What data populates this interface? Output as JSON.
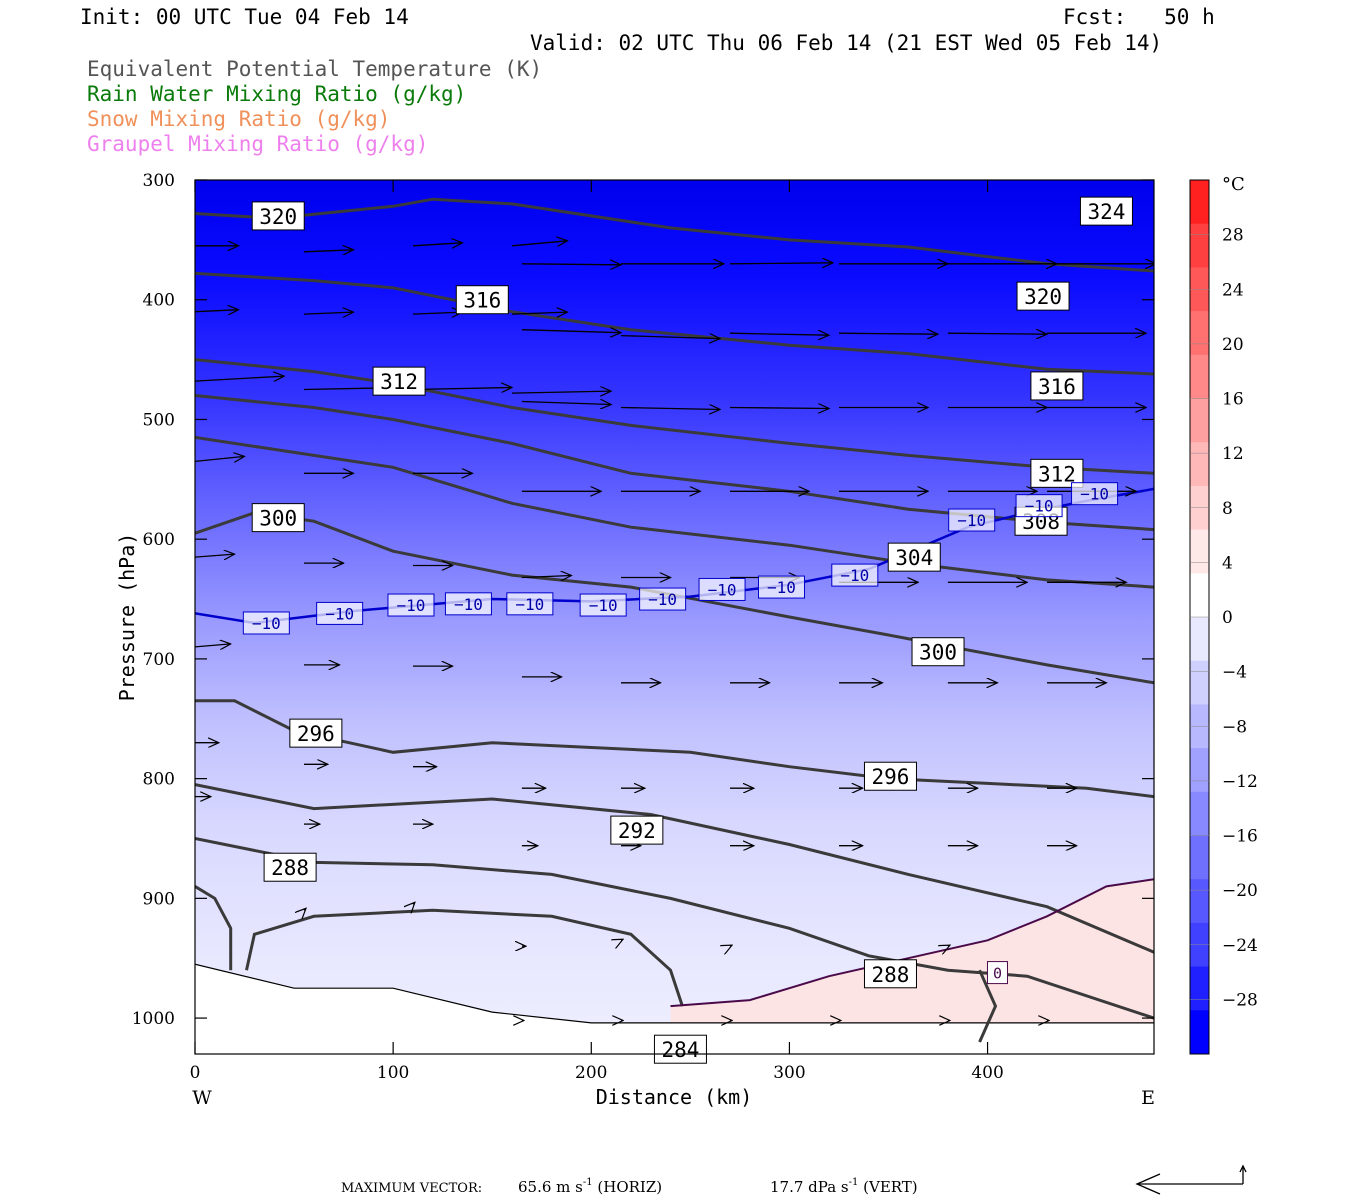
{
  "header": {
    "init": "Init: 00 UTC Tue 04 Feb 14",
    "fcst": "Fcst:   50 h",
    "valid": "Valid: 02 UTC Thu 06 Feb 14 (21 EST Wed 05 Feb 14)"
  },
  "legend": [
    {
      "label": "Equivalent Potential Temperature (K)",
      "color": "#555555"
    },
    {
      "label": "Rain Water Mixing Ratio (g/kg)",
      "color": "#0a7a0a"
    },
    {
      "label": "Snow Mixing Ratio (g/kg)",
      "color": "#f0905a"
    },
    {
      "label": "Graupel Mixing Ratio (g/kg)",
      "color": "#ee80ee"
    }
  ],
  "footer": {
    "label": "MAXIMUM VECTOR:",
    "horiz_value": "65.6 m s",
    "horiz_unit": "(HORIZ)",
    "vert_value": "17.7 dPa s",
    "vert_unit": "(VERT)",
    "exponent": "-1"
  },
  "chart_data": {
    "type": "cross-section",
    "xlabel": "Distance (km)",
    "ylabel": "Pressure (hPa)",
    "xlim": [
      0,
      484
    ],
    "ylim": [
      1030,
      300
    ],
    "x_ticks": [
      0,
      100,
      200,
      300,
      400
    ],
    "y_ticks": [
      300,
      400,
      500,
      600,
      700,
      800,
      900,
      1000
    ],
    "x_end_labels": {
      "left": "W",
      "right": "E"
    },
    "colorbar": {
      "unit": "°C",
      "tick_labels": [
        "28",
        "24",
        "20",
        "16",
        "12",
        "8",
        "4",
        "0",
        "−4",
        "−8",
        "−12",
        "−16",
        "−20",
        "−24",
        "−28"
      ],
      "tick_values": [
        28,
        24,
        20,
        16,
        12,
        8,
        4,
        0,
        -4,
        -8,
        -12,
        -16,
        -20,
        -24,
        -28
      ],
      "colors": [
        "#ff2020",
        "#ff4040",
        "#ff5858",
        "#ff7070",
        "#ff8888",
        "#ffa0a0",
        "#ffb8b8",
        "#ffd0d0",
        "#ffe8e8",
        "#ffffff",
        "#e8e8ff",
        "#d0d0ff",
        "#b8b8ff",
        "#a0a0ff",
        "#8888ff",
        "#7070ff",
        "#5858ff",
        "#4040ff",
        "#2020ff",
        "#0000ff"
      ]
    },
    "theta_e_contours": [
      {
        "level": 320,
        "points": [
          [
            0,
            328
          ],
          [
            40,
            332
          ],
          [
            100,
            322
          ],
          [
            120,
            316
          ],
          [
            160,
            320
          ],
          [
            240,
            340
          ],
          [
            300,
            350
          ],
          [
            360,
            356
          ],
          [
            430,
            370
          ],
          [
            484,
            376
          ]
        ]
      },
      {
        "level": 316,
        "points": [
          [
            0,
            378
          ],
          [
            60,
            384
          ],
          [
            100,
            390
          ],
          [
            160,
            410
          ],
          [
            220,
            425
          ],
          [
            300,
            438
          ],
          [
            360,
            445
          ],
          [
            430,
            458
          ],
          [
            484,
            462
          ]
        ]
      },
      {
        "level": 312,
        "points": [
          [
            0,
            450
          ],
          [
            60,
            460
          ],
          [
            100,
            470
          ],
          [
            160,
            490
          ],
          [
            220,
            505
          ],
          [
            300,
            520
          ],
          [
            360,
            530
          ],
          [
            430,
            540
          ],
          [
            484,
            545
          ]
        ]
      },
      {
        "level": 308,
        "points": [
          [
            0,
            480
          ],
          [
            60,
            490
          ],
          [
            100,
            500
          ],
          [
            160,
            520
          ],
          [
            220,
            545
          ],
          [
            300,
            560
          ],
          [
            360,
            575
          ],
          [
            430,
            586
          ],
          [
            484,
            592
          ]
        ]
      },
      {
        "level": 304,
        "points": [
          [
            0,
            515
          ],
          [
            40,
            525
          ],
          [
            100,
            540
          ],
          [
            160,
            570
          ],
          [
            220,
            590
          ],
          [
            300,
            605
          ],
          [
            360,
            620
          ],
          [
            430,
            634
          ],
          [
            484,
            640
          ]
        ]
      },
      {
        "level": 300,
        "points": [
          [
            0,
            595
          ],
          [
            30,
            578
          ],
          [
            60,
            585
          ],
          [
            100,
            610
          ],
          [
            160,
            630
          ],
          [
            220,
            640
          ],
          [
            300,
            665
          ],
          [
            350,
            680
          ],
          [
            430,
            705
          ],
          [
            484,
            720
          ]
        ]
      },
      {
        "level": 296,
        "points": [
          [
            0,
            735
          ],
          [
            20,
            735
          ],
          [
            50,
            760
          ],
          [
            100,
            778
          ],
          [
            150,
            770
          ],
          [
            250,
            778
          ],
          [
            300,
            790
          ],
          [
            350,
            800
          ],
          [
            400,
            804
          ],
          [
            450,
            808
          ],
          [
            484,
            815
          ]
        ]
      },
      {
        "level": 292,
        "points": [
          [
            0,
            805
          ],
          [
            60,
            825
          ],
          [
            150,
            817
          ],
          [
            230,
            830
          ],
          [
            300,
            855
          ],
          [
            360,
            880
          ],
          [
            430,
            907
          ],
          [
            484,
            945
          ]
        ]
      },
      {
        "level": 288,
        "points": [
          [
            0,
            850
          ],
          [
            60,
            870
          ],
          [
            120,
            872
          ],
          [
            180,
            880
          ],
          [
            240,
            900
          ],
          [
            300,
            925
          ],
          [
            340,
            948
          ],
          [
            380,
            960
          ],
          [
            420,
            965
          ],
          [
            484,
            1000
          ]
        ]
      },
      {
        "level": 284,
        "points": [
          [
            0,
            890
          ],
          [
            10,
            900
          ],
          [
            18,
            925
          ],
          [
            18,
            960
          ]
        ]
      },
      {
        "level": 284,
        "points": [
          [
            26,
            960
          ],
          [
            30,
            930
          ],
          [
            60,
            915
          ],
          [
            120,
            910
          ],
          [
            180,
            915
          ],
          [
            220,
            930
          ],
          [
            240,
            960
          ],
          [
            246,
            990
          ]
        ]
      },
      {
        "level": 284,
        "points": [
          [
            396,
            960
          ],
          [
            404,
            990
          ],
          [
            396,
            1020
          ]
        ]
      }
    ],
    "theta_e_labels": [
      {
        "text": "320",
        "x": 42,
        "p": 330
      },
      {
        "text": "324",
        "x": 460,
        "p": 326
      },
      {
        "text": "316",
        "x": 145,
        "p": 400
      },
      {
        "text": "320",
        "x": 428,
        "p": 397
      },
      {
        "text": "312",
        "x": 103,
        "p": 468
      },
      {
        "text": "316",
        "x": 435,
        "p": 472
      },
      {
        "text": "312",
        "x": 435,
        "p": 545
      },
      {
        "text": "308",
        "x": 427,
        "p": 585
      },
      {
        "text": "300",
        "x": 42,
        "p": 582
      },
      {
        "text": "304",
        "x": 363,
        "p": 615
      },
      {
        "text": "300",
        "x": 375,
        "p": 694
      },
      {
        "text": "296",
        "x": 61,
        "p": 762
      },
      {
        "text": "296",
        "x": 351,
        "p": 798
      },
      {
        "text": "292",
        "x": 223,
        "p": 843
      },
      {
        "text": "288",
        "x": 48,
        "p": 874
      },
      {
        "text": "288",
        "x": 351,
        "p": 963
      },
      {
        "text": "284",
        "x": 245,
        "p": 1026
      }
    ],
    "isotherm_minus10": {
      "level": -10,
      "points": [
        [
          0,
          662
        ],
        [
          30,
          670
        ],
        [
          80,
          660
        ],
        [
          150,
          650
        ],
        [
          200,
          652
        ],
        [
          250,
          648
        ],
        [
          300,
          638
        ],
        [
          340,
          625
        ],
        [
          370,
          604
        ],
        [
          390,
          590
        ],
        [
          420,
          578
        ],
        [
          450,
          568
        ],
        [
          484,
          558
        ]
      ],
      "labels": [
        [
          36,
          670
        ],
        [
          73,
          662
        ],
        [
          109,
          655
        ],
        [
          138,
          654
        ],
        [
          169,
          654
        ],
        [
          206,
          655
        ],
        [
          236,
          650
        ],
        [
          266,
          642
        ],
        [
          296,
          640
        ],
        [
          333,
          630
        ],
        [
          392,
          584
        ],
        [
          426,
          572
        ],
        [
          454,
          562
        ]
      ]
    },
    "isotherm_zero": {
      "level": 0,
      "points": [
        [
          240,
          990
        ],
        [
          280,
          985
        ],
        [
          320,
          965
        ],
        [
          360,
          950
        ],
        [
          400,
          935
        ],
        [
          430,
          915
        ],
        [
          460,
          890
        ],
        [
          484,
          884
        ]
      ],
      "label": [
        405,
        962
      ]
    },
    "ground": [
      [
        0,
        955
      ],
      [
        50,
        975
      ],
      [
        100,
        975
      ],
      [
        150,
        995
      ],
      [
        200,
        1004
      ],
      [
        250,
        1004
      ],
      [
        300,
        1004
      ],
      [
        400,
        1004
      ],
      [
        484,
        1004
      ]
    ],
    "wind_vectors": [
      [
        0,
        355,
        22,
        0
      ],
      [
        55,
        360,
        25,
        -2
      ],
      [
        110,
        355,
        25,
        -3
      ],
      [
        160,
        355,
        28,
        -5
      ],
      [
        165,
        370,
        50,
        1
      ],
      [
        215,
        370,
        52,
        0
      ],
      [
        270,
        370,
        52,
        -1
      ],
      [
        325,
        370,
        55,
        0
      ],
      [
        380,
        370,
        55,
        0
      ],
      [
        430,
        370,
        55,
        0
      ],
      [
        0,
        410,
        22,
        -2
      ],
      [
        55,
        412,
        25,
        -2
      ],
      [
        110,
        412,
        25,
        -2
      ],
      [
        160,
        412,
        28,
        -2
      ],
      [
        165,
        425,
        50,
        3
      ],
      [
        215,
        430,
        50,
        3
      ],
      [
        270,
        428,
        50,
        2
      ],
      [
        325,
        428,
        50,
        1
      ],
      [
        380,
        428,
        50,
        1
      ],
      [
        430,
        428,
        50,
        0
      ],
      [
        0,
        468,
        45,
        -5
      ],
      [
        55,
        475,
        50,
        -2
      ],
      [
        110,
        475,
        50,
        -2
      ],
      [
        160,
        478,
        50,
        -2
      ],
      [
        165,
        485,
        45,
        3
      ],
      [
        215,
        490,
        50,
        2
      ],
      [
        270,
        490,
        50,
        1
      ],
      [
        325,
        490,
        45,
        0
      ],
      [
        380,
        490,
        50,
        0
      ],
      [
        430,
        490,
        50,
        0
      ],
      [
        0,
        535,
        25,
        -5
      ],
      [
        55,
        545,
        25,
        0
      ],
      [
        110,
        545,
        30,
        0
      ],
      [
        165,
        560,
        40,
        0
      ],
      [
        215,
        560,
        40,
        0
      ],
      [
        270,
        560,
        40,
        0
      ],
      [
        325,
        560,
        45,
        0
      ],
      [
        380,
        560,
        45,
        0
      ],
      [
        430,
        560,
        45,
        0
      ],
      [
        0,
        615,
        20,
        -3
      ],
      [
        55,
        620,
        20,
        0
      ],
      [
        110,
        622,
        20,
        0
      ],
      [
        165,
        632,
        25,
        -2
      ],
      [
        215,
        632,
        25,
        0
      ],
      [
        270,
        632,
        35,
        0
      ],
      [
        325,
        636,
        40,
        0
      ],
      [
        380,
        636,
        40,
        0
      ],
      [
        430,
        636,
        40,
        0
      ],
      [
        0,
        690,
        18,
        -3
      ],
      [
        55,
        705,
        18,
        0
      ],
      [
        110,
        706,
        20,
        0
      ],
      [
        165,
        715,
        20,
        0
      ],
      [
        215,
        720,
        20,
        0
      ],
      [
        270,
        720,
        20,
        0
      ],
      [
        325,
        720,
        22,
        0
      ],
      [
        380,
        720,
        25,
        0
      ],
      [
        430,
        720,
        30,
        0
      ],
      [
        0,
        770,
        12,
        0
      ],
      [
        55,
        788,
        12,
        0
      ],
      [
        110,
        790,
        12,
        0
      ],
      [
        165,
        808,
        12,
        0
      ],
      [
        215,
        808,
        12,
        0
      ],
      [
        270,
        808,
        12,
        0
      ],
      [
        325,
        808,
        12,
        0
      ],
      [
        380,
        808,
        15,
        0
      ],
      [
        430,
        808,
        15,
        0
      ],
      [
        0,
        815,
        8,
        0
      ],
      [
        55,
        838,
        8,
        0
      ],
      [
        110,
        838,
        10,
        0
      ],
      [
        165,
        856,
        8,
        0
      ],
      [
        215,
        856,
        10,
        0
      ],
      [
        270,
        856,
        12,
        0
      ],
      [
        325,
        856,
        12,
        0
      ],
      [
        380,
        856,
        15,
        0
      ],
      [
        430,
        856,
        15,
        0
      ],
      [
        55,
        910,
        1,
        -2
      ],
      [
        110,
        905,
        1,
        -2
      ],
      [
        165,
        940,
        2,
        0
      ],
      [
        215,
        935,
        1,
        -1
      ],
      [
        270,
        940,
        1,
        -1
      ],
      [
        380,
        940,
        1,
        -1
      ],
      [
        165,
        1002,
        1,
        0
      ],
      [
        215,
        1002,
        1,
        0
      ],
      [
        270,
        1002,
        1,
        0
      ],
      [
        325,
        1002,
        1,
        0
      ],
      [
        380,
        1002,
        1,
        0
      ],
      [
        430,
        1002,
        1,
        0
      ]
    ]
  }
}
